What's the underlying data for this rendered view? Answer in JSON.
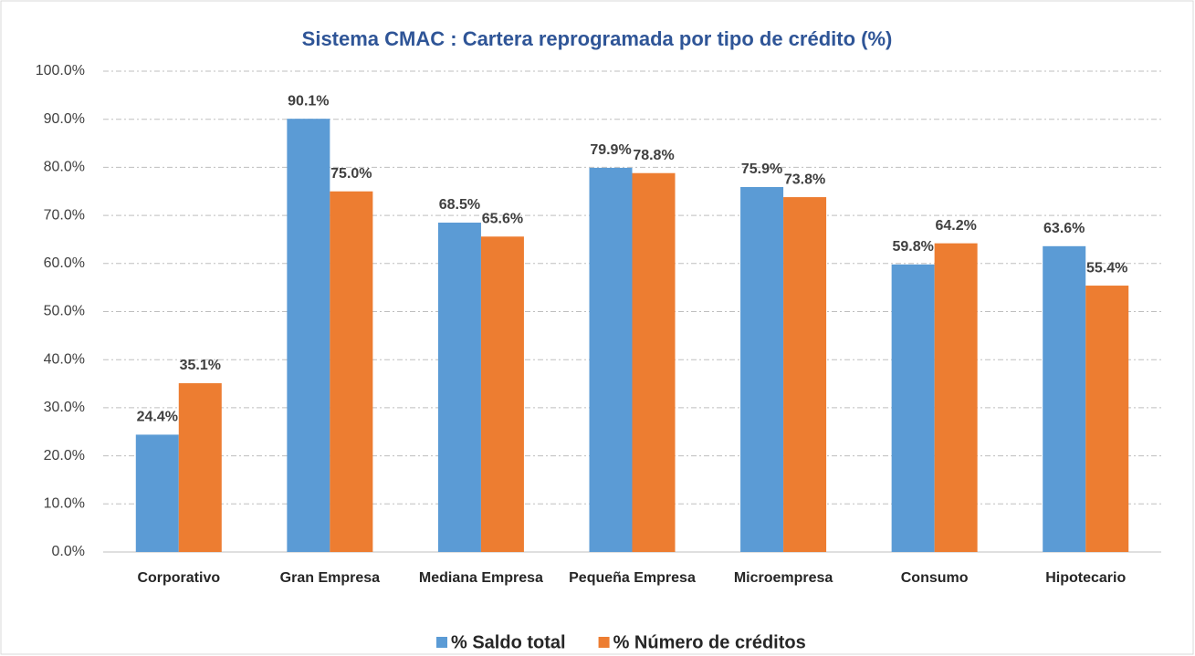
{
  "chart_data": {
    "type": "bar",
    "title": "Sistema CMAC : Cartera reprogramada por tipo de crédito (%)",
    "categories": [
      "Corporativo",
      "Gran Empresa",
      "Mediana Empresa",
      "Pequeña Empresa",
      "Microempresa",
      "Consumo",
      "Hipotecario"
    ],
    "series": [
      {
        "name": "% Saldo total",
        "color": "#5b9bd5",
        "label_color": "#2e75b6",
        "values": [
          24.4,
          90.1,
          68.5,
          79.9,
          75.9,
          59.8,
          63.6
        ],
        "value_labels": [
          "24.4%",
          "90.1%",
          "68.5%",
          "79.9%",
          "75.9%",
          "59.8%",
          "63.6%"
        ]
      },
      {
        "name": "% Número de créditos",
        "color": "#ed7d31",
        "label_color": "#c55a11",
        "values": [
          35.1,
          75.0,
          65.6,
          78.8,
          73.8,
          64.2,
          55.4
        ],
        "value_labels": [
          "35.1%",
          "75.0%",
          "65.6%",
          "78.8%",
          "73.8%",
          "64.2%",
          "55.4%"
        ]
      }
    ],
    "ylim": [
      0,
      100
    ],
    "yticks": [
      {
        "value": 0,
        "label": "0.0%"
      },
      {
        "value": 10,
        "label": "10.0%"
      },
      {
        "value": 20,
        "label": "20.0%"
      },
      {
        "value": 30,
        "label": "30.0%"
      },
      {
        "value": 40,
        "label": "40.0%"
      },
      {
        "value": 50,
        "label": "50.0%"
      },
      {
        "value": 60,
        "label": "60.0%"
      },
      {
        "value": 70,
        "label": "70.0%"
      },
      {
        "value": 80,
        "label": "80.0%"
      },
      {
        "value": 90,
        "label": "90.0%"
      },
      {
        "value": 100,
        "label": "100.0%"
      }
    ],
    "grid": true,
    "legend": "bottom"
  }
}
